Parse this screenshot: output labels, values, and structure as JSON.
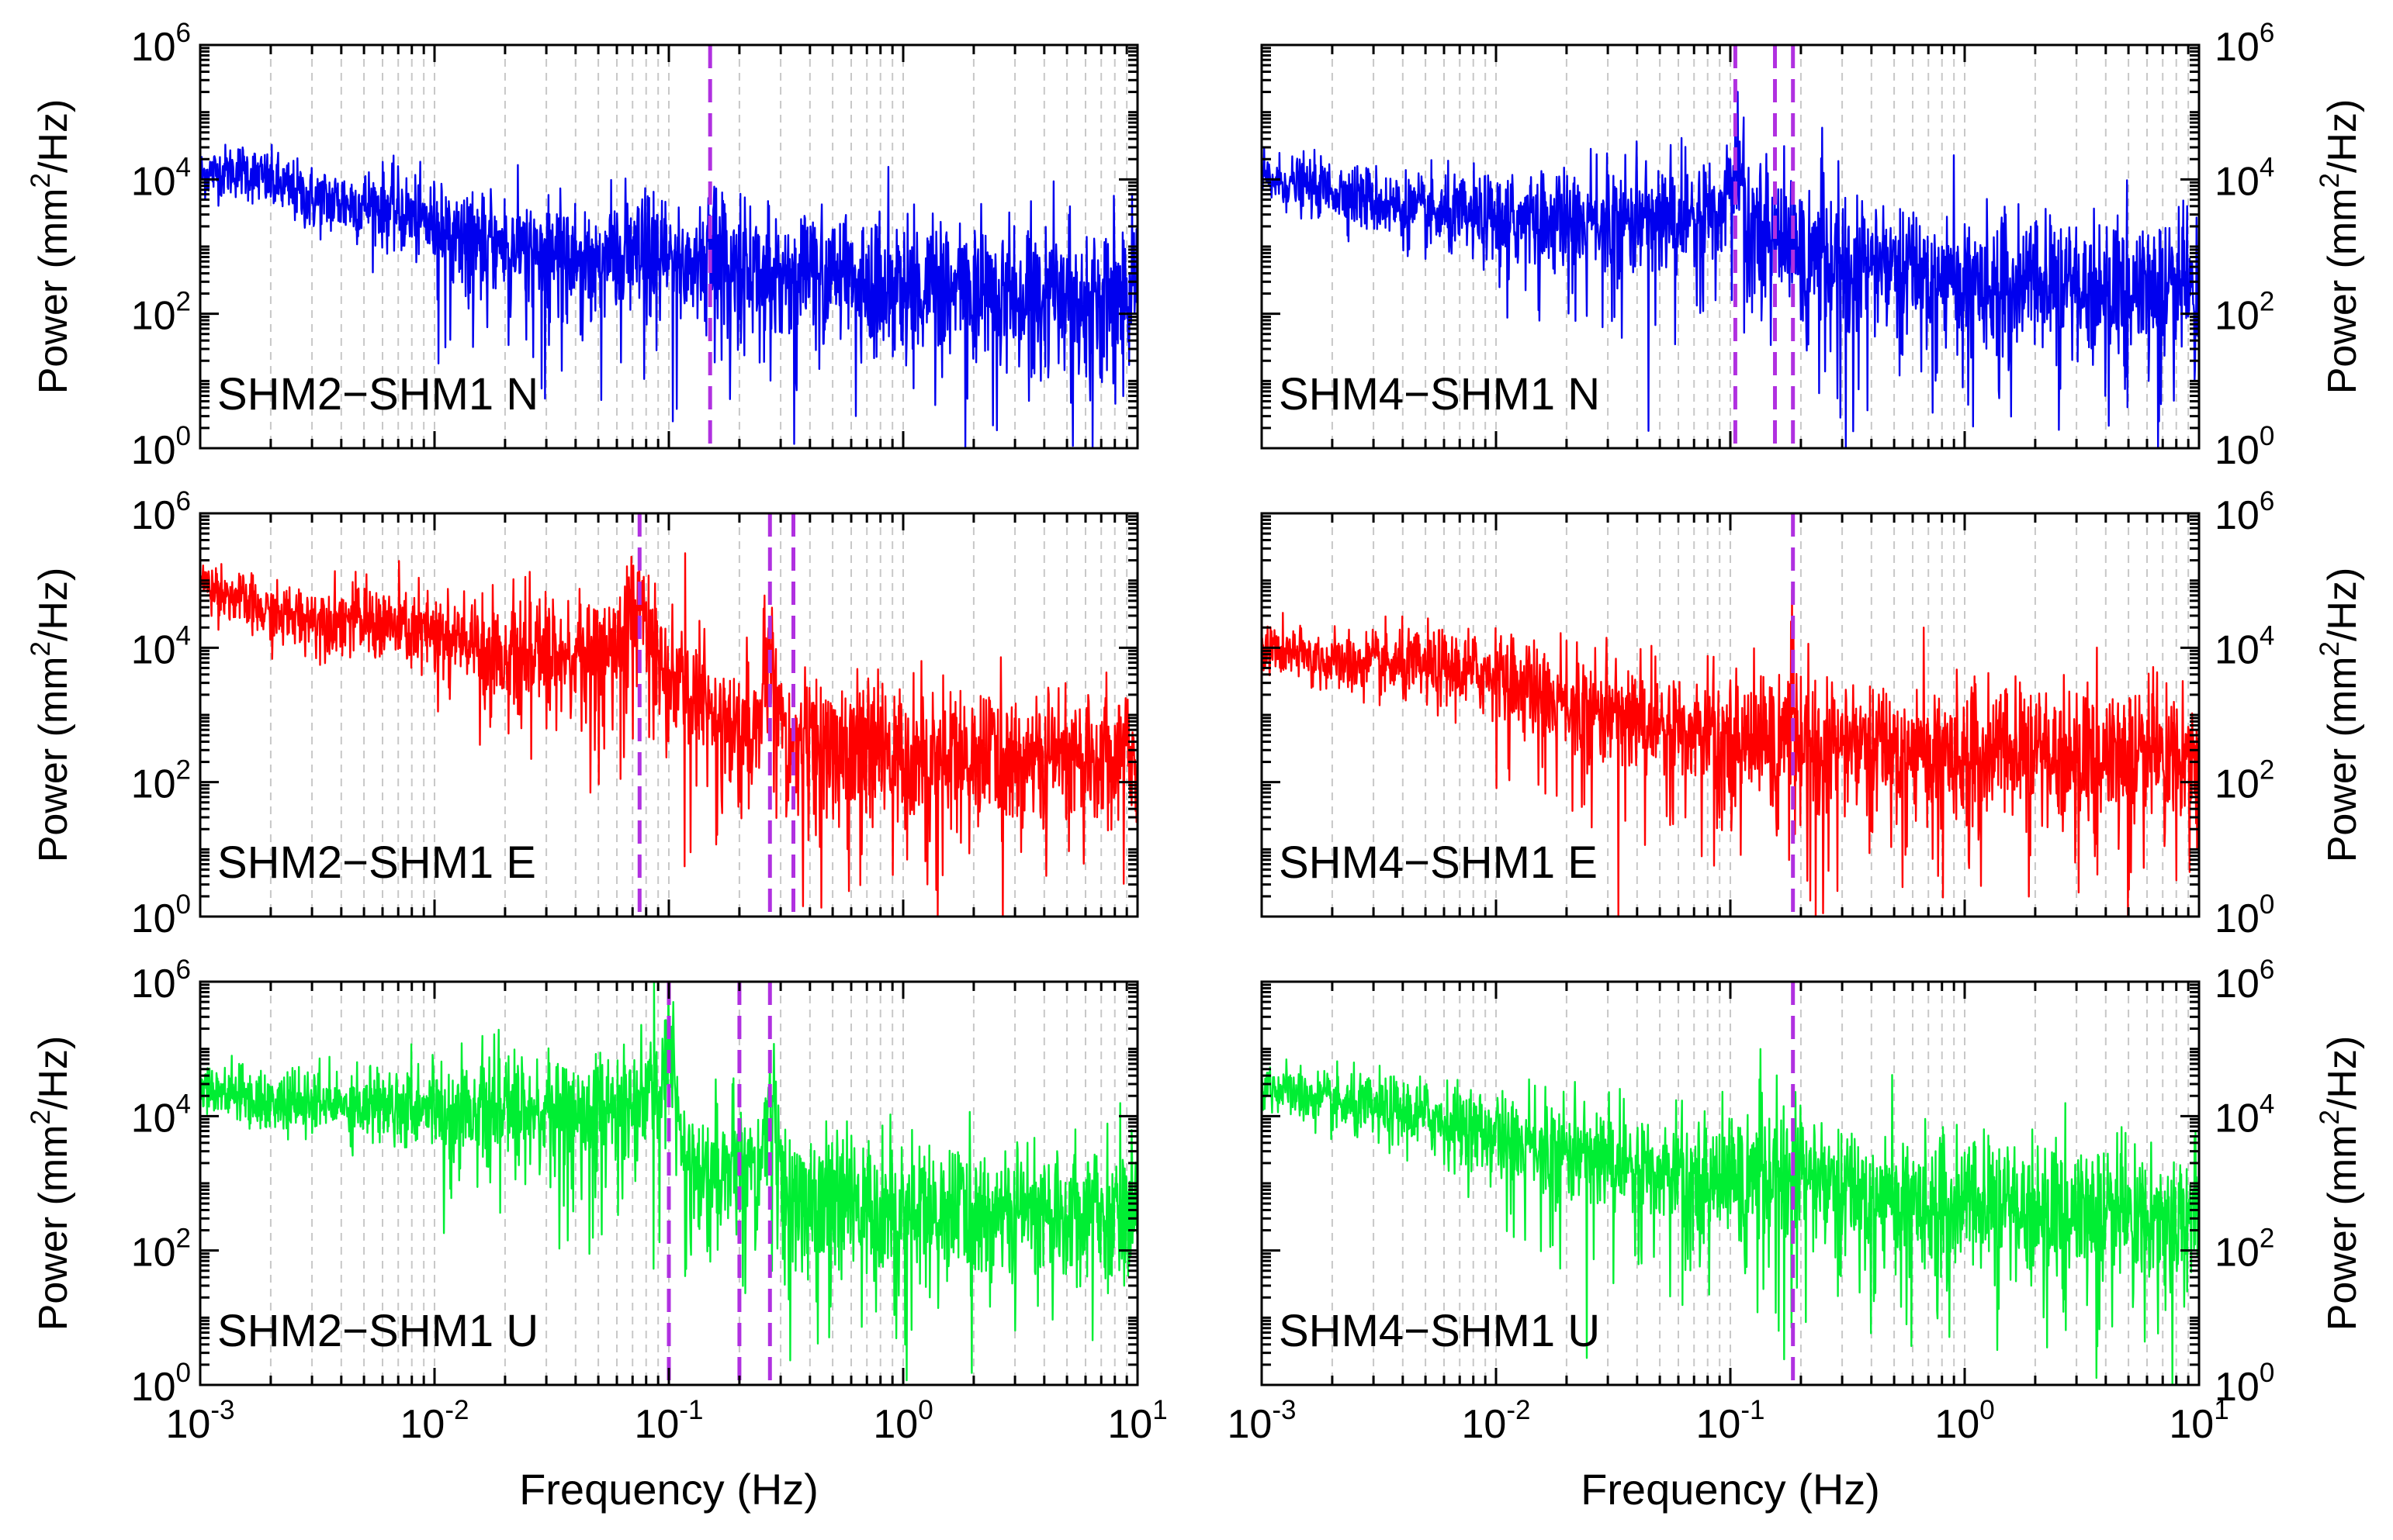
{
  "figure": {
    "xlabel": "Frequency (Hz)",
    "ylabel_main": "Power (mm",
    "ylabel_sup": "2",
    "ylabel_tail": "/Hz)",
    "x_ticks": [
      {
        "base": "10",
        "exp": "-3",
        "value": 0.001
      },
      {
        "base": "10",
        "exp": "-2",
        "value": 0.01
      },
      {
        "base": "10",
        "exp": "-1",
        "value": 0.1
      },
      {
        "base": "10",
        "exp": "0",
        "value": 1
      },
      {
        "base": "10",
        "exp": "1",
        "value": 10
      }
    ],
    "y_ticks": [
      {
        "base": "10",
        "exp": "0",
        "value": 1
      },
      {
        "base": "10",
        "exp": "2",
        "value": 100
      },
      {
        "base": "10",
        "exp": "4",
        "value": 10000
      },
      {
        "base": "10",
        "exp": "6",
        "value": 1000000
      }
    ]
  },
  "chart_data": [
    {
      "id": "shm2-n",
      "type": "line",
      "label": "SHM2−SHM1 N",
      "color": "#0000ee",
      "xscale": "log",
      "yscale": "log",
      "xlim": [
        0.001,
        10
      ],
      "ylim": [
        1,
        1000000
      ],
      "markers_hz": [
        0.15
      ],
      "peaks": [
        [
          0.15,
          1200
        ]
      ],
      "profile": [
        [
          0.001,
          12000
        ],
        [
          0.0015,
          14000
        ],
        [
          0.003,
          5000
        ],
        [
          0.006,
          4000
        ],
        [
          0.01,
          2000
        ],
        [
          0.02,
          1000
        ],
        [
          0.05,
          700
        ],
        [
          0.1,
          600
        ],
        [
          0.2,
          500
        ],
        [
          0.5,
          350
        ],
        [
          1,
          250
        ],
        [
          3,
          200
        ],
        [
          10,
          200
        ]
      ],
      "grid": true,
      "legend": "bottom-left"
    },
    {
      "id": "shm4-n",
      "type": "line",
      "label": "SHM4−SHM1 N",
      "color": "#0000ee",
      "xscale": "log",
      "yscale": "log",
      "xlim": [
        0.001,
        10
      ],
      "ylim": [
        1,
        1000000
      ],
      "markers_hz": [
        0.105,
        0.155,
        0.185
      ],
      "peaks": [
        [
          0.105,
          15000
        ]
      ],
      "profile": [
        [
          0.001,
          10000
        ],
        [
          0.002,
          7000
        ],
        [
          0.005,
          3000
        ],
        [
          0.01,
          2500
        ],
        [
          0.03,
          2500
        ],
        [
          0.06,
          2500
        ],
        [
          0.1,
          4000
        ],
        [
          0.15,
          2000
        ],
        [
          0.2,
          800
        ],
        [
          0.5,
          500
        ],
        [
          1,
          350
        ],
        [
          3,
          250
        ],
        [
          10,
          250
        ]
      ],
      "grid": true,
      "legend": "bottom-left"
    },
    {
      "id": "shm2-e",
      "type": "line",
      "label": "SHM2−SHM1 E",
      "color": "#ff0000",
      "xscale": "log",
      "yscale": "log",
      "xlim": [
        0.001,
        10
      ],
      "ylim": [
        1,
        1000000
      ],
      "markers_hz": [
        0.075,
        0.27,
        0.34
      ],
      "peaks": [
        [
          0.075,
          40000
        ],
        [
          0.27,
          6000
        ]
      ],
      "profile": [
        [
          0.001,
          100000
        ],
        [
          0.002,
          30000
        ],
        [
          0.005,
          25000
        ],
        [
          0.01,
          15000
        ],
        [
          0.02,
          8000
        ],
        [
          0.05,
          8000
        ],
        [
          0.075,
          30000
        ],
        [
          0.1,
          3000
        ],
        [
          0.2,
          800
        ],
        [
          0.3,
          400
        ],
        [
          1,
          250
        ],
        [
          5,
          250
        ],
        [
          10,
          300
        ]
      ],
      "grid": true,
      "legend": "bottom-left"
    },
    {
      "id": "shm4-e",
      "type": "line",
      "label": "SHM4−SHM1 E",
      "color": "#ff0000",
      "xscale": "log",
      "yscale": "log",
      "xlim": [
        0.001,
        10
      ],
      "ylim": [
        1,
        1000000
      ],
      "markers_hz": [
        0.185
      ],
      "peaks": [
        [
          0.185,
          900
        ]
      ],
      "profile": [
        [
          0.001,
          10000
        ],
        [
          0.002,
          6000
        ],
        [
          0.005,
          5000
        ],
        [
          0.01,
          4000
        ],
        [
          0.02,
          1500
        ],
        [
          0.05,
          700
        ],
        [
          0.1,
          500
        ],
        [
          0.2,
          400
        ],
        [
          1,
          300
        ],
        [
          5,
          250
        ],
        [
          10,
          300
        ]
      ],
      "grid": true,
      "legend": "bottom-left"
    },
    {
      "id": "shm2-u",
      "type": "line",
      "label": "SHM2−SHM1 U",
      "color": "#00ee33",
      "xscale": "log",
      "yscale": "log",
      "xlim": [
        0.001,
        10
      ],
      "ylim": [
        1,
        1000000
      ],
      "markers_hz": [
        0.1,
        0.2,
        0.27
      ],
      "peaks": [
        [
          0.1,
          80000
        ],
        [
          0.27,
          15000
        ]
      ],
      "profile": [
        [
          0.001,
          30000
        ],
        [
          0.002,
          15000
        ],
        [
          0.005,
          15000
        ],
        [
          0.01,
          15000
        ],
        [
          0.03,
          12000
        ],
        [
          0.06,
          12000
        ],
        [
          0.09,
          20000
        ],
        [
          0.13,
          2000
        ],
        [
          0.2,
          1500
        ],
        [
          0.28,
          1000
        ],
        [
          0.3,
          600
        ],
        [
          1,
          400
        ],
        [
          5,
          400
        ],
        [
          10,
          500
        ]
      ],
      "grid": true,
      "legend": "bottom-left"
    },
    {
      "id": "shm4-u",
      "type": "line",
      "label": "SHM4−SHM1 U",
      "color": "#00ee33",
      "xscale": "log",
      "yscale": "log",
      "xlim": [
        0.001,
        10
      ],
      "ylim": [
        1,
        1000000
      ],
      "markers_hz": [
        0.185
      ],
      "peaks": [
        [
          0.185,
          2500
        ]
      ],
      "profile": [
        [
          0.001,
          30000
        ],
        [
          0.002,
          15000
        ],
        [
          0.005,
          10000
        ],
        [
          0.01,
          5000
        ],
        [
          0.02,
          3000
        ],
        [
          0.05,
          1500
        ],
        [
          0.1,
          1200
        ],
        [
          0.185,
          1500
        ],
        [
          0.3,
          800
        ],
        [
          1,
          500
        ],
        [
          5,
          350
        ],
        [
          10,
          400
        ]
      ],
      "grid": true,
      "legend": "bottom-left"
    }
  ]
}
